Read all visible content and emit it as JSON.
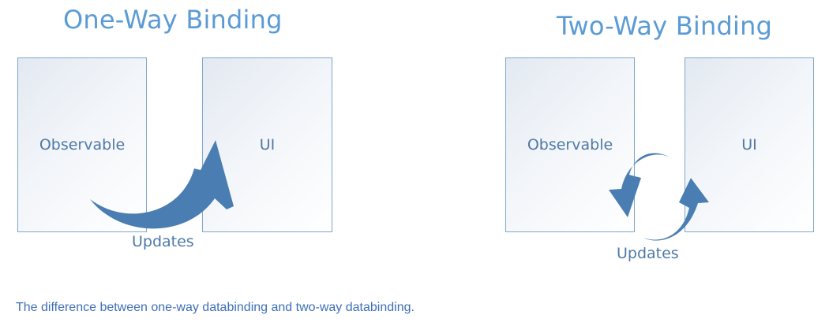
{
  "diagrams": [
    {
      "title": "One-Way Binding",
      "source_label": "Observable",
      "target_label": "UI",
      "arrow_label": "Updates"
    },
    {
      "title": "Two-Way Binding",
      "source_label": "Observable",
      "target_label": "UI",
      "arrow_label": "Updates"
    }
  ],
  "caption": "The difference between one-way databinding and two-way databinding.",
  "colors": {
    "title": "#5b9bd5",
    "arrow": "#4a7db2",
    "label": "#4e79a7",
    "box_border": "#7fa6cc",
    "caption": "#3e6fb8"
  },
  "icons": [
    "curved-arrow-icon",
    "sync-arrows-icon"
  ]
}
